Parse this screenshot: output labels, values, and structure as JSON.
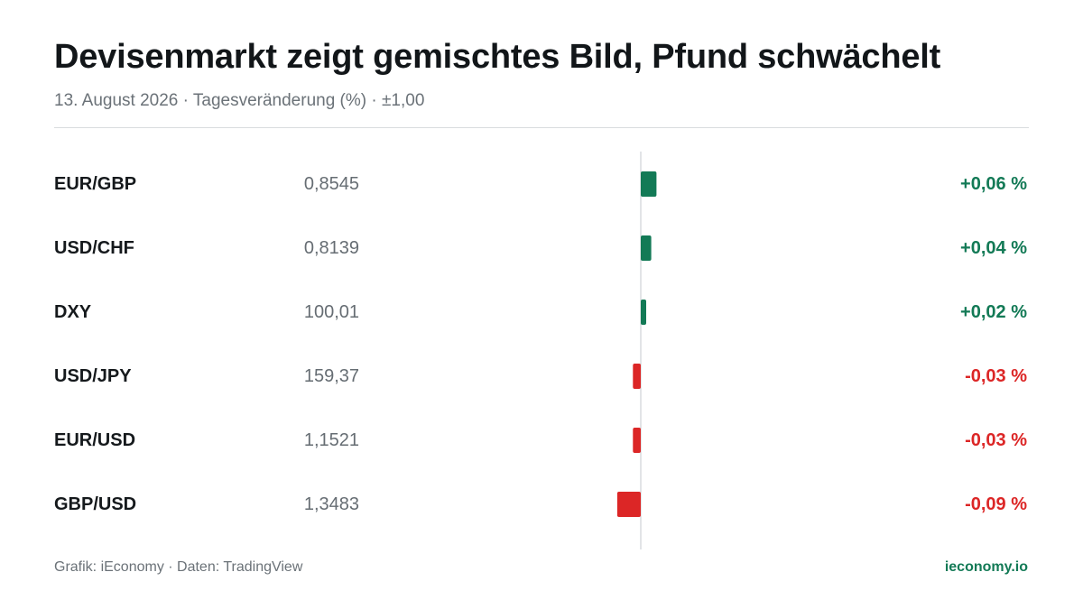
{
  "title": "Devisenmarkt zeigt gemischtes Bild, Pfund schwächelt",
  "subtitle": "13. August 2026 · Tagesveränderung (%) · ±1,00",
  "footer": {
    "source": "Grafik: iEconomy · Daten: TradingView",
    "brand": "ieconomy.io"
  },
  "colors": {
    "positive": "#137a56",
    "negative": "#dc2626",
    "axis": "#d9dcdf"
  },
  "chart_data": {
    "type": "bar",
    "orientation": "horizontal",
    "unit": "%",
    "xlim": [
      -1.0,
      1.0
    ],
    "rows": [
      {
        "pair": "EUR/GBP",
        "price": "0,8545",
        "change": 0.06,
        "change_label": "+0,06 %"
      },
      {
        "pair": "USD/CHF",
        "price": "0,8139",
        "change": 0.04,
        "change_label": "+0,04 %"
      },
      {
        "pair": "DXY",
        "price": "100,01",
        "change": 0.02,
        "change_label": "+0,02 %"
      },
      {
        "pair": "USD/JPY",
        "price": "159,37",
        "change": -0.03,
        "change_label": "-0,03 %"
      },
      {
        "pair": "EUR/USD",
        "price": "1,1521",
        "change": -0.03,
        "change_label": "-0,03 %"
      },
      {
        "pair": "GBP/USD",
        "price": "1,3483",
        "change": -0.09,
        "change_label": "-0,09 %"
      }
    ]
  }
}
